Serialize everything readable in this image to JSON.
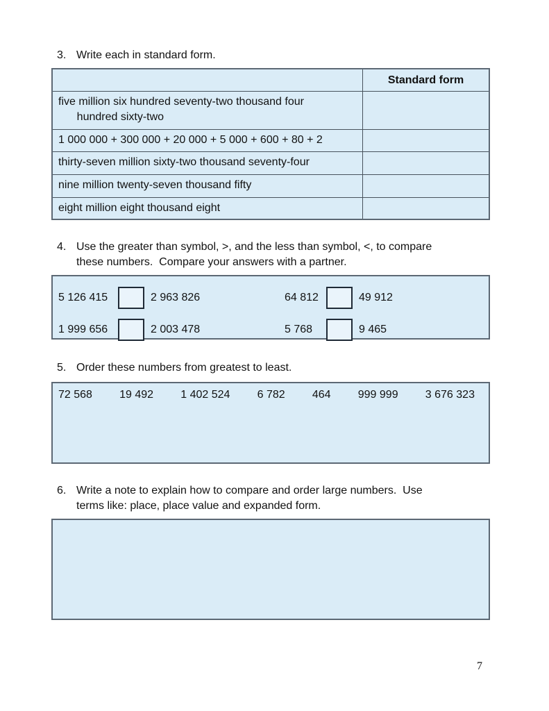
{
  "colors": {
    "panel_fill": "#daecf7",
    "panel_border": "#5c6874",
    "answer_box_fill": "#eaf4fb",
    "answer_box_border": "#1f2a36",
    "text": "#111111"
  },
  "q3": {
    "number": "3.",
    "prompt": "Write each in standard form.",
    "table": {
      "header_standard_form": "Standard form",
      "rows": [
        "five million six hundred seventy-two thousand four\n      hundred sixty-two",
        "1 000 000 + 300 000 + 20 000 + 5 000 + 600 + 80 + 2",
        "thirty-seven million sixty-two thousand seventy-four",
        "nine million twenty-seven thousand fifty",
        "eight million eight thousand eight"
      ]
    }
  },
  "q4": {
    "number": "4.",
    "prompt": "Use the greater than symbol, >, and the less than symbol, <, to compare\nthese numbers.  Compare your answers with a partner.",
    "pairs": [
      {
        "left": "5 126 415",
        "right": "2 963 826"
      },
      {
        "left": "64 812",
        "right": "49 912"
      },
      {
        "left": "1 999 656",
        "right": "2 003 478"
      },
      {
        "left": "5 768",
        "right": "9 465"
      }
    ]
  },
  "q5": {
    "number": "5.",
    "prompt": "Order these numbers from greatest to least.",
    "numbers": [
      "72 568",
      "19 492",
      "1 402 524",
      "6 782",
      "464",
      "999 999",
      "3 676 323"
    ]
  },
  "q6": {
    "number": "6.",
    "prompt": "Write a note to explain how to compare and order large numbers.  Use\nterms like: place, place value and expanded form."
  },
  "footer": {
    "page_number": "7"
  }
}
